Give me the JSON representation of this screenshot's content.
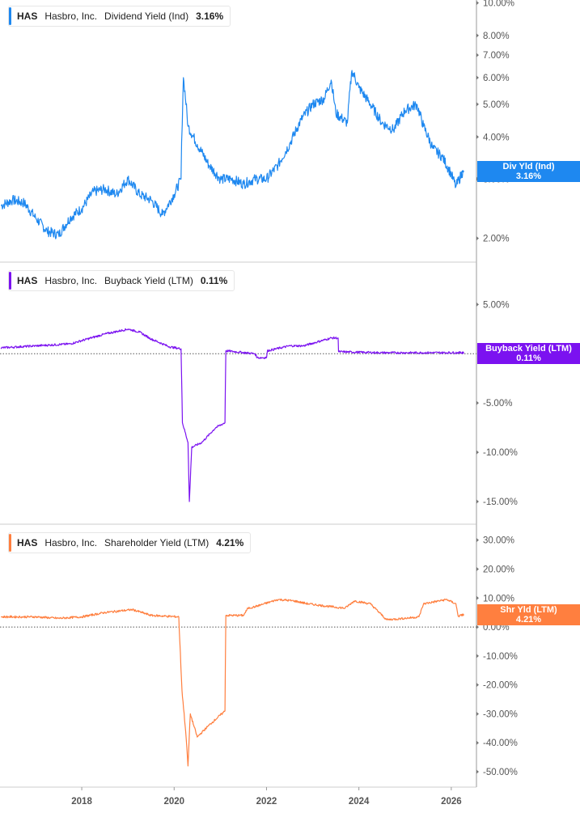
{
  "x_axis": {
    "ticks": [
      "2018",
      "2020",
      "2022",
      "2024",
      "2026"
    ]
  },
  "chart_data": [
    {
      "type": "line",
      "legend": {
        "ticker": "HAS",
        "company": "Hasbro, Inc.",
        "metric": "Dividend Yield (Ind)",
        "value": "3.16%"
      },
      "tag": {
        "label": "Div Yld (Ind)",
        "value": "3.16%"
      },
      "color": "#1e88f0",
      "scale": "log",
      "ylim": [
        1.7,
        10.2
      ],
      "yticks": [
        {
          "v": 10,
          "label": "10.00%"
        },
        {
          "v": 8,
          "label": "8.00%"
        },
        {
          "v": 7,
          "label": "7.00%"
        },
        {
          "v": 6,
          "label": "6.00%"
        },
        {
          "v": 5,
          "label": "5.00%"
        },
        {
          "v": 4,
          "label": "4.00%"
        },
        {
          "v": 3,
          "label": "3.00%"
        },
        {
          "v": 2,
          "label": "2.00%"
        }
      ],
      "zero_line": false,
      "x": [
        2016.25,
        2016.5,
        2016.75,
        2017.0,
        2017.25,
        2017.5,
        2017.75,
        2018.0,
        2018.25,
        2018.5,
        2018.75,
        2019.0,
        2019.25,
        2019.5,
        2019.75,
        2020.0,
        2020.15,
        2020.2,
        2020.3,
        2020.5,
        2020.75,
        2021.0,
        2021.25,
        2021.5,
        2021.75,
        2022.0,
        2022.25,
        2022.5,
        2022.75,
        2023.0,
        2023.25,
        2023.4,
        2023.5,
        2023.75,
        2023.85,
        2024.0,
        2024.25,
        2024.5,
        2024.75,
        2025.0,
        2025.25,
        2025.4,
        2025.6,
        2025.8,
        2026.0,
        2026.1,
        2026.25
      ],
      "values": [
        2.5,
        2.6,
        2.55,
        2.3,
        2.1,
        2.05,
        2.3,
        2.45,
        2.75,
        2.8,
        2.7,
        3.0,
        2.7,
        2.6,
        2.35,
        2.7,
        3.0,
        6.0,
        4.3,
        3.8,
        3.3,
        3.0,
        3.0,
        2.9,
        3.0,
        3.0,
        3.3,
        3.8,
        4.5,
        5.0,
        5.2,
        5.9,
        4.7,
        4.4,
        6.3,
        5.6,
        5.0,
        4.4,
        4.2,
        4.8,
        5.0,
        4.3,
        3.7,
        3.5,
        3.1,
        2.85,
        3.16
      ]
    },
    {
      "type": "line",
      "legend": {
        "ticker": "HAS",
        "company": "Hasbro, Inc.",
        "metric": "Buyback Yield (LTM)",
        "value": "0.11%"
      },
      "tag": {
        "label": "Buyback Yield (LTM)",
        "value": "0.11%"
      },
      "color": "#7b12f0",
      "scale": "linear",
      "ylim": [
        -17.3,
        9.3
      ],
      "yticks": [
        {
          "v": 5,
          "label": "5.00%"
        },
        {
          "v": -5,
          "label": "-5.00%"
        },
        {
          "v": -10,
          "label": "-10.00%"
        },
        {
          "v": -15,
          "label": "-15.00%"
        }
      ],
      "zero_line": true,
      "x": [
        2016.25,
        2017.0,
        2017.75,
        2018.5,
        2019.0,
        2019.25,
        2019.5,
        2019.9,
        2020.15,
        2020.18,
        2020.3,
        2020.33,
        2020.38,
        2020.6,
        2020.9,
        2021.1,
        2021.12,
        2021.75,
        2021.8,
        2022.0,
        2022.02,
        2022.5,
        2022.8,
        2023.1,
        2023.4,
        2023.55,
        2023.56,
        2024.5,
        2026.25
      ],
      "values": [
        0.6,
        0.8,
        1.0,
        2.0,
        2.5,
        2.2,
        1.5,
        0.7,
        0.5,
        -7,
        -9,
        -15,
        -9.5,
        -9,
        -7.5,
        -7,
        0.3,
        0,
        -0.4,
        -0.4,
        0.3,
        0.8,
        0.8,
        1.2,
        1.6,
        1.6,
        0.2,
        0.1,
        0.11
      ]
    },
    {
      "type": "line",
      "legend": {
        "ticker": "HAS",
        "company": "Hasbro, Inc.",
        "metric": "Shareholder Yield (LTM)",
        "value": "4.21%"
      },
      "tag": {
        "label": "Shr Yld (LTM)",
        "value": "4.21%"
      },
      "color": "#ff7f3f",
      "scale": "linear",
      "ylim": [
        -55.3,
        35.5
      ],
      "yticks": [
        {
          "v": 30,
          "label": "30.00%"
        },
        {
          "v": 20,
          "label": "20.00%"
        },
        {
          "v": 10,
          "label": "10.00%"
        },
        {
          "v": 0,
          "label": "0.00%"
        },
        {
          "v": -10,
          "label": "-10.00%"
        },
        {
          "v": -20,
          "label": "-20.00%"
        },
        {
          "v": -30,
          "label": "-30.00%"
        },
        {
          "v": -40,
          "label": "-40.00%"
        },
        {
          "v": -50,
          "label": "-50.00%"
        }
      ],
      "zero_line": true,
      "x": [
        2016.25,
        2017.0,
        2017.5,
        2018.0,
        2018.5,
        2019.1,
        2019.5,
        2020.1,
        2020.17,
        2020.25,
        2020.3,
        2020.35,
        2020.5,
        2020.75,
        2021.1,
        2021.12,
        2021.5,
        2021.6,
        2021.75,
        2022.25,
        2022.6,
        2022.9,
        2023.4,
        2023.7,
        2023.9,
        2024.25,
        2024.6,
        2025.0,
        2025.3,
        2025.4,
        2025.9,
        2026.1,
        2026.15,
        2026.25
      ],
      "values": [
        3.5,
        3.5,
        3.0,
        3.5,
        5,
        6,
        4,
        3.5,
        -22,
        -36,
        -48,
        -30,
        -38,
        -34,
        -29,
        4,
        4,
        6.5,
        7,
        9.5,
        9,
        8,
        7,
        6.5,
        9,
        8,
        2.5,
        3,
        3.5,
        8,
        9.5,
        8,
        3.7,
        4.21
      ]
    }
  ]
}
